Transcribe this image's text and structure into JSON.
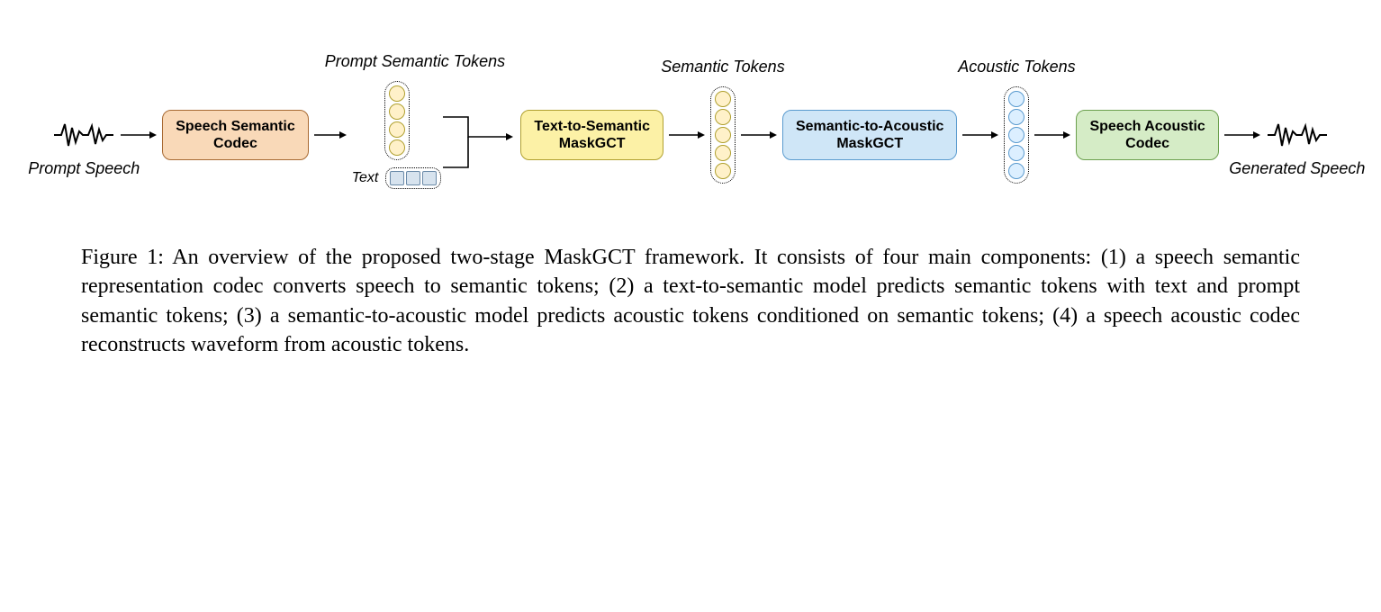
{
  "diagram": {
    "labels": {
      "prompt_speech": "Prompt Speech",
      "prompt_semantic_tokens": "Prompt Semantic Tokens",
      "semantic_tokens": "Semantic Tokens",
      "acoustic_tokens": "Acoustic Tokens",
      "generated_speech": "Generated Speech",
      "text": "Text"
    },
    "blocks": {
      "speech_semantic_codec": {
        "line1": "Speech Semantic",
        "line2": "Codec",
        "bg": "#f9d9b8",
        "border": "#a86a33"
      },
      "text_to_semantic": {
        "line1": "Text-to-Semantic",
        "line2": "MaskGCT",
        "bg": "#fcf1a6",
        "border": "#b0a02f"
      },
      "semantic_to_acoustic": {
        "line1": "Semantic-to-Acoustic",
        "line2": "MaskGCT",
        "bg": "#cfe6f7",
        "border": "#5a9bcf"
      },
      "speech_acoustic_codec": {
        "line1": "Speech Acoustic",
        "line2": "Codec",
        "bg": "#d5ecc6",
        "border": "#6ca04e"
      }
    },
    "tokens": {
      "prompt_semantic": {
        "count": 4,
        "fill": "#fff1c9",
        "stroke": "#b0a02f"
      },
      "text_squares": {
        "count": 3,
        "fill": "#d7e3ee",
        "stroke": "#6a8aa8"
      },
      "semantic": {
        "count": 5,
        "fill": "#fff1c9",
        "stroke": "#b0a02f"
      },
      "acoustic": {
        "count": 5,
        "fill": "#dcefff",
        "stroke": "#5a9bcf"
      }
    },
    "arrow_color": "#000000",
    "waveform_stroke": "#000000"
  },
  "caption": "Figure 1: An overview of the proposed two-stage MaskGCT framework. It consists of four main components: (1) a speech semantic representation codec converts speech to semantic tokens; (2) a text-to-semantic model predicts semantic tokens with text and prompt semantic tokens; (3) a semantic-to-acoustic model predicts acoustic tokens conditioned on semantic tokens; (4) a speech acoustic codec reconstructs waveform from acoustic tokens."
}
